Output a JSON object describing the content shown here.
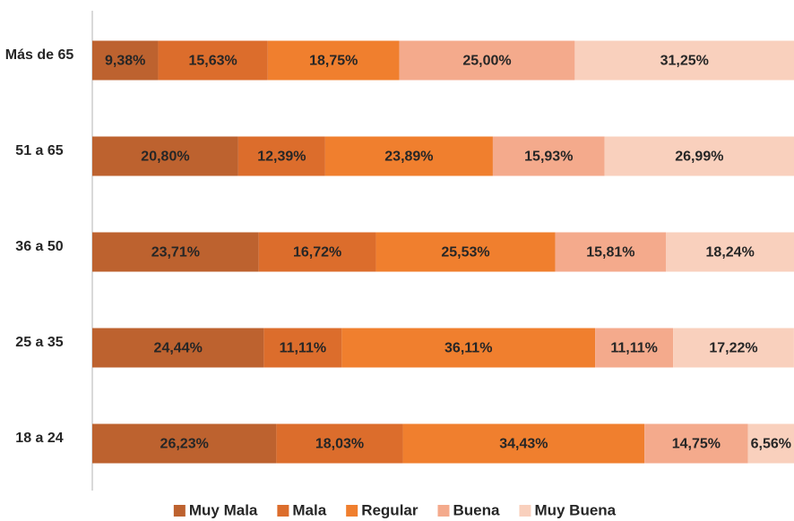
{
  "chart_data": {
    "type": "stacked-bar-horizontal",
    "categories": [
      "Más de 65",
      "51 a 65",
      "36 a 50",
      "25 a 35",
      "18 a 24"
    ],
    "xlim": [
      0,
      100
    ],
    "series": [
      {
        "name": "Muy Mala",
        "color": "#bd622f",
        "values": [
          9.38,
          20.8,
          23.71,
          24.44,
          26.23
        ],
        "value_labels": [
          "9,38%",
          "20,80%",
          "23,71%",
          "24,44%",
          "26,23%"
        ]
      },
      {
        "name": "Mala",
        "color": "#dc6d2c",
        "values": [
          15.63,
          12.39,
          16.72,
          11.11,
          18.03
        ],
        "value_labels": [
          "15,63%",
          "12,39%",
          "16,72%",
          "11,11%",
          "18,03%"
        ]
      },
      {
        "name": "Regular",
        "color": "#f07f2e",
        "values": [
          18.75,
          23.89,
          25.53,
          36.11,
          34.43
        ],
        "value_labels": [
          "18,75%",
          "23,89%",
          "25,53%",
          "36,11%",
          "34,43%"
        ]
      },
      {
        "name": "Buena",
        "color": "#f4aa8c",
        "values": [
          25.0,
          15.93,
          15.81,
          11.11,
          14.75
        ],
        "value_labels": [
          "25,00%",
          "15,93%",
          "15,81%",
          "11,11%",
          "14,75%"
        ]
      },
      {
        "name": "Muy Buena",
        "color": "#f9d0bd",
        "values": [
          31.25,
          26.99,
          18.24,
          17.22,
          6.56
        ],
        "value_labels": [
          "31,25%",
          "26,99%",
          "18,24%",
          "17,22%",
          "6,56%"
        ]
      }
    ]
  }
}
